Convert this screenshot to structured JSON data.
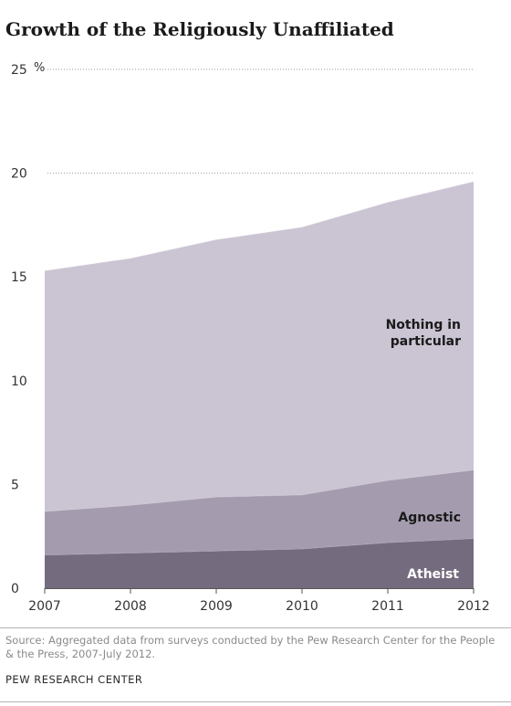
{
  "chart_data": {
    "type": "area",
    "stacked": true,
    "title": "Growth of the Religiously Unaffiliated",
    "x": [
      "2007",
      "2008",
      "2009",
      "2010",
      "2011",
      "2012"
    ],
    "series": [
      {
        "name": "Atheist",
        "values": [
          1.6,
          1.7,
          1.8,
          1.9,
          2.2,
          2.4
        ],
        "color": "#756b7e"
      },
      {
        "name": "Agnostic",
        "values": [
          2.1,
          2.3,
          2.6,
          2.6,
          3.0,
          3.3
        ],
        "color": "#a49cae"
      },
      {
        "name": "Nothing in particular",
        "values": [
          11.6,
          11.9,
          12.4,
          12.9,
          13.4,
          13.9
        ],
        "color": "#cbc4d3"
      }
    ],
    "ylim": [
      0,
      25
    ],
    "yticks": [
      "0",
      "5",
      "10",
      "15",
      "20",
      "25"
    ],
    "ytick_unit": "%",
    "grid_lines_at": [
      20,
      25
    ],
    "series_labels": {
      "atheist": "Atheist",
      "agnostic": "Agnostic",
      "nothing_line1": "Nothing in",
      "nothing_line2": "particular"
    }
  },
  "source": "Source: Aggregated data from surveys conducted by the Pew Research Center for the People & the Press, 2007-July 2012.",
  "footer": "PEW RESEARCH CENTER"
}
